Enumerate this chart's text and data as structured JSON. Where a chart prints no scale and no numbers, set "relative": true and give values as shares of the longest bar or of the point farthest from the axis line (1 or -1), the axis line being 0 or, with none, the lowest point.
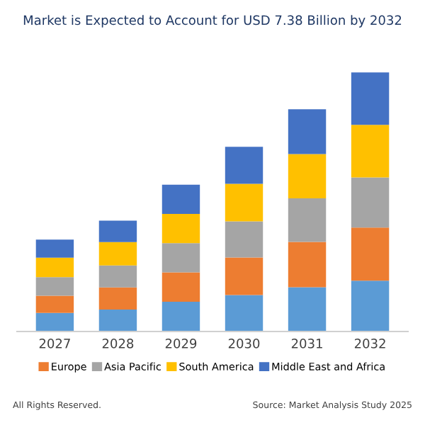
{
  "chart_data": {
    "type": "bar",
    "title": "Market is Expected to Account for USD 7.38 Billion by 2032",
    "categories": [
      "2027",
      "2028",
      "2029",
      "2030",
      "2031",
      "2032"
    ],
    "stacked": true,
    "relative": true,
    "legend": "bottom",
    "series": [
      {
        "color": "#5b9bd5",
        "values": [
          0.072,
          0.085,
          0.115,
          0.141,
          0.171,
          0.196
        ]
      },
      {
        "name": "Europe",
        "color": "#ed7d31",
        "values": [
          0.066,
          0.085,
          0.113,
          0.145,
          0.175,
          0.205
        ]
      },
      {
        "name": "Asia Pacific",
        "color": "#a5a5a5",
        "values": [
          0.072,
          0.085,
          0.113,
          0.139,
          0.168,
          0.194
        ]
      },
      {
        "name": "South America",
        "color": "#ffc000",
        "values": [
          0.075,
          0.09,
          0.113,
          0.145,
          0.171,
          0.203
        ]
      },
      {
        "name": "Middle East and Africa",
        "color": "#4472c4",
        "values": [
          0.07,
          0.083,
          0.113,
          0.143,
          0.173,
          0.202
        ]
      }
    ],
    "annotations": [
      "All Rights Reserved.",
      "Source: Market Analysis Study 2025"
    ]
  }
}
